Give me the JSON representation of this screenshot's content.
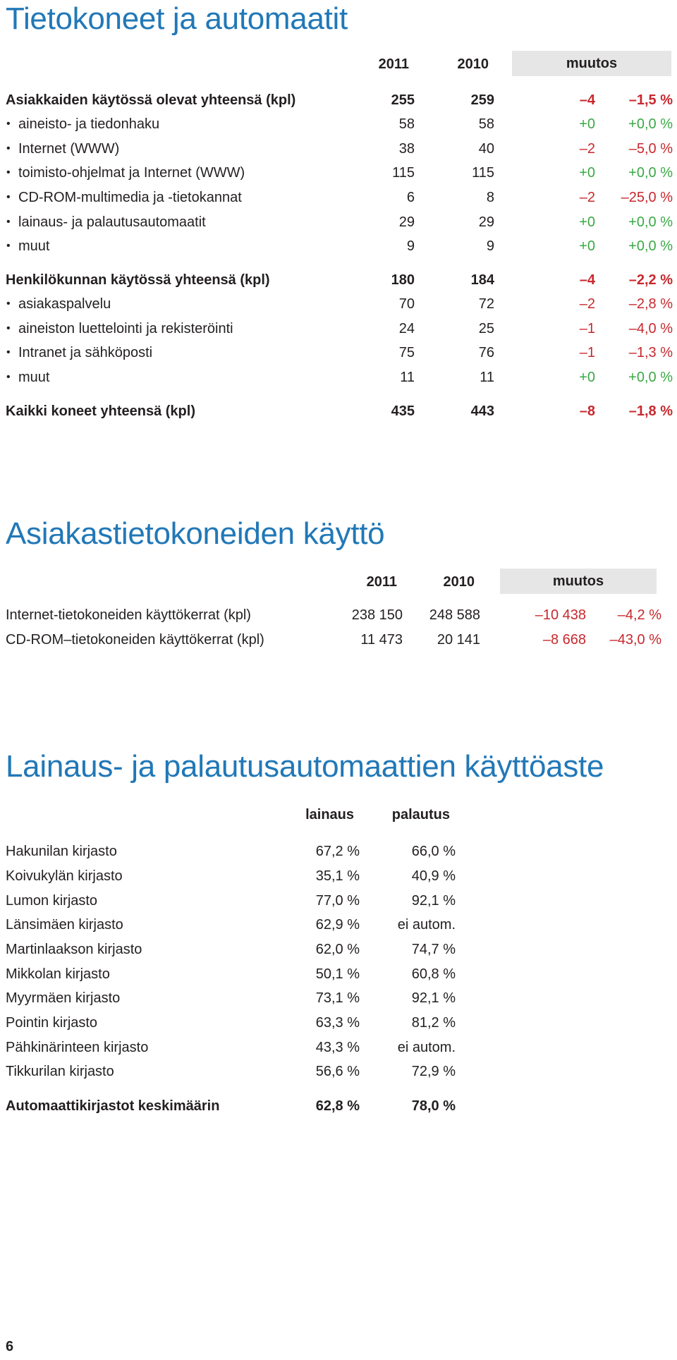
{
  "section1": {
    "title": "Tietokoneet ja automaatit",
    "col_2011": "2011",
    "col_2010": "2010",
    "col_change": "muutos",
    "rows": [
      {
        "label": "Asiakkaiden käytössä olevat yhteensä (kpl)",
        "v2011": "255",
        "v2010": "259",
        "diff": "–4",
        "pct": "–1,5 %",
        "bold": true,
        "bullet": false,
        "sign": "neg"
      },
      {
        "label": "aineisto- ja tiedonhaku",
        "v2011": "58",
        "v2010": "58",
        "diff": "+0",
        "pct": "+0,0 %",
        "bold": false,
        "bullet": true,
        "sign": "pos"
      },
      {
        "label": "Internet (WWW)",
        "v2011": "38",
        "v2010": "40",
        "diff": "–2",
        "pct": "–5,0 %",
        "bold": false,
        "bullet": true,
        "sign": "neg"
      },
      {
        "label": "toimisto-ohjelmat ja Internet (WWW)",
        "v2011": "115",
        "v2010": "115",
        "diff": "+0",
        "pct": "+0,0 %",
        "bold": false,
        "bullet": true,
        "sign": "pos"
      },
      {
        "label": "CD-ROM-multimedia ja -tietokannat",
        "v2011": "6",
        "v2010": "8",
        "diff": "–2",
        "pct": "–25,0 %",
        "bold": false,
        "bullet": true,
        "sign": "neg"
      },
      {
        "label": "lainaus- ja palautusautomaatit",
        "v2011": "29",
        "v2010": "29",
        "diff": "+0",
        "pct": "+0,0 %",
        "bold": false,
        "bullet": true,
        "sign": "pos"
      },
      {
        "label": "muut",
        "v2011": "9",
        "v2010": "9",
        "diff": "+0",
        "pct": "+0,0 %",
        "bold": false,
        "bullet": true,
        "sign": "pos"
      },
      {
        "label": "Henkilökunnan käytössä yhteensä (kpl)",
        "v2011": "180",
        "v2010": "184",
        "diff": "–4",
        "pct": "–2,2 %",
        "bold": true,
        "bullet": false,
        "sign": "neg"
      },
      {
        "label": "asiakaspalvelu",
        "v2011": "70",
        "v2010": "72",
        "diff": "–2",
        "pct": "–2,8 %",
        "bold": false,
        "bullet": true,
        "sign": "neg"
      },
      {
        "label": "aineiston luettelointi ja rekisteröinti",
        "v2011": "24",
        "v2010": "25",
        "diff": "–1",
        "pct": "–4,0 %",
        "bold": false,
        "bullet": true,
        "sign": "neg"
      },
      {
        "label": "Intranet ja sähköposti",
        "v2011": "75",
        "v2010": "76",
        "diff": "–1",
        "pct": "–1,3 %",
        "bold": false,
        "bullet": true,
        "sign": "neg"
      },
      {
        "label": "muut",
        "v2011": "11",
        "v2010": "11",
        "diff": "+0",
        "pct": "+0,0 %",
        "bold": false,
        "bullet": true,
        "sign": "pos"
      },
      {
        "label": "Kaikki koneet yhteensä (kpl)",
        "v2011": "435",
        "v2010": "443",
        "diff": "–8",
        "pct": "–1,8 %",
        "bold": true,
        "bullet": false,
        "sign": "neg"
      }
    ]
  },
  "section2": {
    "title": "Asiakastietokoneiden käyttö",
    "col_2011": "2011",
    "col_2010": "2010",
    "col_change": "muutos",
    "rows": [
      {
        "label": "Internet-tietokoneiden käyttökerrat (kpl)",
        "v2011": "238 150",
        "v2010": "248 588",
        "diff": "–10 438",
        "pct": "–4,2 %"
      },
      {
        "label": "CD-ROM–tietokoneiden käyttökerrat (kpl)",
        "v2011": "11 473",
        "v2010": "20 141",
        "diff": "–8 668",
        "pct": "–43,0 %"
      }
    ]
  },
  "section3": {
    "title": "Lainaus- ja palautusautomaattien käyttöaste",
    "col_lainaus": "lainaus",
    "col_palautus": "palautus",
    "rows": [
      {
        "label": "Hakunilan kirjasto",
        "lainaus": "67,2 %",
        "palautus": "66,0 %"
      },
      {
        "label": "Koivukylän kirjasto",
        "lainaus": "35,1 %",
        "palautus": "40,9 %"
      },
      {
        "label": "Lumon kirjasto",
        "lainaus": "77,0 %",
        "palautus": "92,1 %"
      },
      {
        "label": "Länsimäen kirjasto",
        "lainaus": "62,9 %",
        "palautus": "ei autom."
      },
      {
        "label": "Martinlaakson kirjasto",
        "lainaus": "62,0 %",
        "palautus": "74,7 %"
      },
      {
        "label": "Mikkolan kirjasto",
        "lainaus": "50,1 %",
        "palautus": "60,8 %"
      },
      {
        "label": "Myyrmäen kirjasto",
        "lainaus": "73,1 %",
        "palautus": "92,1 %"
      },
      {
        "label": "Pointin kirjasto",
        "lainaus": "63,3 %",
        "palautus": "81,2 %"
      },
      {
        "label": "Pähkinärinteen kirjasto",
        "lainaus": "43,3 %",
        "palautus": "ei autom."
      },
      {
        "label": "Tikkurilan kirjasto",
        "lainaus": "56,6 %",
        "palautus": "72,9 %"
      }
    ],
    "total": {
      "label": "Automaattikirjastot keskimäärin",
      "lainaus": "62,8 %",
      "palautus": "78,0 %"
    }
  },
  "page_number": "6",
  "colors": {
    "heading": "#2178b7",
    "negative": "#c8282d",
    "positive": "#3aa845",
    "header_box": "#e6e6e6"
  }
}
